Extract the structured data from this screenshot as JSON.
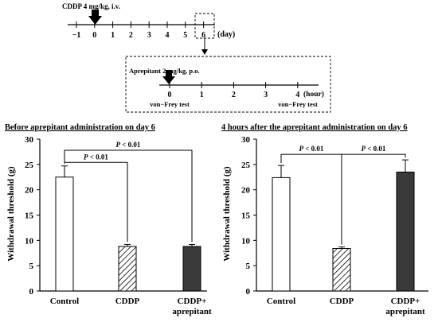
{
  "timeline": {
    "day_injection_label": "CDDP 4 mg/kg, i.v.",
    "day_ticks": [
      "−1",
      "0",
      "1",
      "2",
      "3",
      "4",
      "5",
      "6"
    ],
    "day_unit": "(day)",
    "hour_injection_label": "Aprepitant 2 mg/kg, p.o.",
    "hour_ticks": [
      "0",
      "1",
      "2",
      "3",
      "4"
    ],
    "hour_unit": "(hour)",
    "test_label_start": "von−Frey test",
    "test_label_end": "von−Frey test"
  },
  "colors": {
    "control": "#ffffff",
    "cddp": "hatched",
    "aprepitant": "#3a3a3a",
    "axis": "#000000"
  },
  "chart_data": [
    {
      "type": "bar",
      "title": "Before aprepitant administration on day 6",
      "ylabel": "Withdrawal threshold (g)",
      "ylim": [
        0,
        30
      ],
      "yticks": [
        "0",
        "5",
        "10",
        "15",
        "20",
        "25",
        "30"
      ],
      "categories": [
        "Control",
        "CDDP",
        "CDDP+ aprepitant"
      ],
      "category_lines": [
        [
          "Control"
        ],
        [
          "CDDP"
        ],
        [
          "CDDP+",
          "aprepitant"
        ]
      ],
      "values": [
        22.5,
        8.8,
        8.8
      ],
      "errors": [
        2.2,
        0.4,
        0.4
      ],
      "fills": [
        "white",
        "hatch",
        "dark"
      ],
      "significance": [
        {
          "from": 0,
          "to": 1,
          "label": "P < 0.01",
          "y": 25.4
        },
        {
          "from": 0,
          "to": 2,
          "label": "P < 0.01",
          "y": 27.8
        }
      ]
    },
    {
      "type": "bar",
      "title": "4 hours after the aprepitant administration on day 6",
      "ylabel": "Withdrawal threshold (g)",
      "ylim": [
        0,
        30
      ],
      "yticks": [
        "0",
        "5",
        "10",
        "15",
        "20",
        "25",
        "30"
      ],
      "categories": [
        "Control",
        "CDDP",
        "CDDP+ aprepitant"
      ],
      "category_lines": [
        [
          "Control"
        ],
        [
          "CDDP"
        ],
        [
          "CDDP+",
          "aprepitant"
        ]
      ],
      "values": [
        22.4,
        8.4,
        23.5
      ],
      "errors": [
        2.4,
        0.3,
        2.4
      ],
      "fills": [
        "white",
        "hatch",
        "dark"
      ],
      "significance": [
        {
          "from": 0,
          "to": 1,
          "label": "P < 0.01",
          "y": 27.0
        },
        {
          "from": 1,
          "to": 2,
          "label": "P < 0.01",
          "y": 27.0
        }
      ]
    }
  ]
}
